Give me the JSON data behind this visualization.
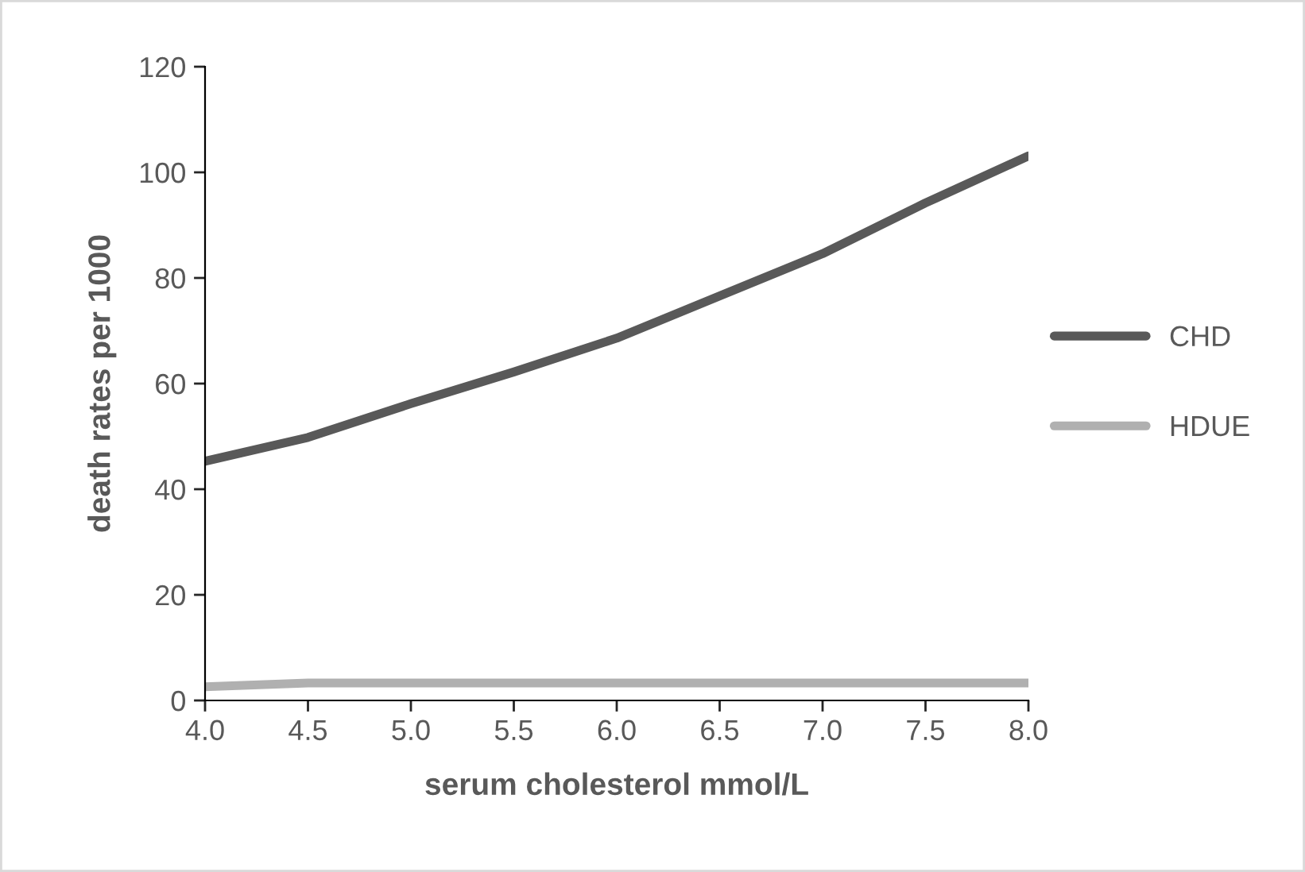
{
  "chart_data": {
    "type": "line",
    "xlabel": "serum cholesterol mmol/L",
    "ylabel": "death rates per 1000",
    "x": [
      4.0,
      4.5,
      5.0,
      5.5,
      6.0,
      6.5,
      7.0,
      7.5,
      8.0
    ],
    "series": [
      {
        "name": "CHD",
        "color": "#595959",
        "values": [
          45.3,
          49.8,
          56.2,
          62.2,
          68.6,
          76.6,
          84.6,
          94.2,
          103.1
        ]
      },
      {
        "name": "HDUE",
        "color": "#b0b0b0",
        "values": [
          2.6,
          3.3,
          3.3,
          3.3,
          3.3,
          3.3,
          3.3,
          3.3,
          3.3
        ]
      }
    ],
    "xlim": [
      4.0,
      8.0
    ],
    "xticks": [
      {
        "value": 4.0,
        "label": "4.0"
      },
      {
        "value": 4.5,
        "label": "4.5"
      },
      {
        "value": 5.0,
        "label": "5.0"
      },
      {
        "value": 5.5,
        "label": "5.5"
      },
      {
        "value": 6.0,
        "label": "6.0"
      },
      {
        "value": 6.5,
        "label": "6.5"
      },
      {
        "value": 7.0,
        "label": "7.0"
      },
      {
        "value": 7.5,
        "label": "7.5"
      },
      {
        "value": 8.0,
        "label": "8.0"
      }
    ],
    "ylim": [
      0,
      120
    ],
    "yticks": [
      0,
      20,
      40,
      60,
      80,
      100,
      120
    ],
    "grid": false,
    "legend": "right",
    "marker": "none",
    "line_style": "solid"
  }
}
